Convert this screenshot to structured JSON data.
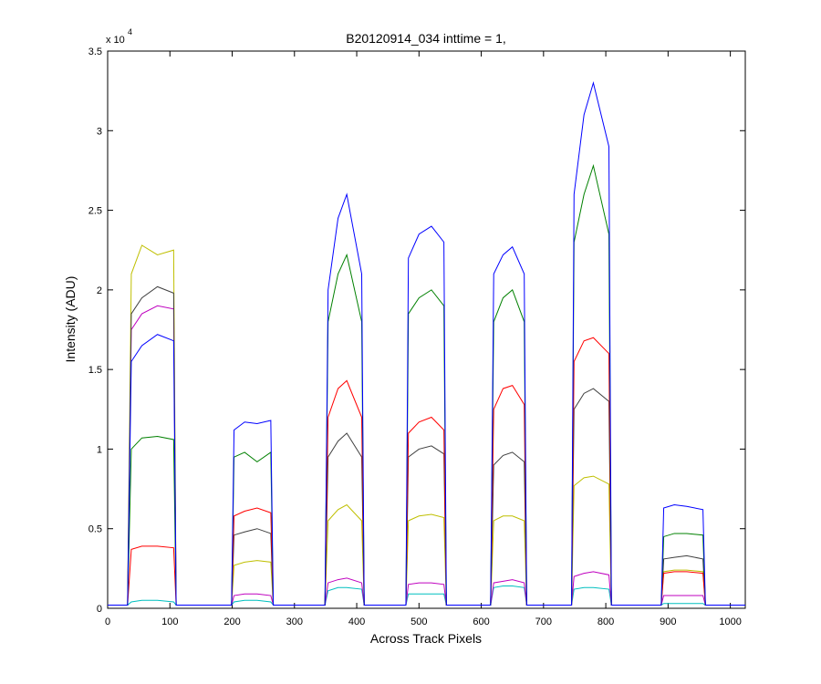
{
  "chart_data": {
    "type": "line",
    "title": "B20120914_034 inttime = 1,",
    "x_label": "Across Track Pixels",
    "y_label": "Intensity (ADU)",
    "y_multiplier": "x 10",
    "y_multiplier_exponent": "4",
    "xlim": [
      0,
      1024
    ],
    "ylim": [
      0,
      3.5
    ],
    "xticks": [
      0,
      100,
      200,
      300,
      400,
      500,
      600,
      700,
      800,
      900,
      1000
    ],
    "yticks": [
      0,
      0.5,
      1,
      1.5,
      2,
      2.5,
      3,
      3.5
    ],
    "grid": false,
    "x": [
      0,
      32,
      38,
      55,
      80,
      106,
      110,
      199,
      203,
      220,
      240,
      262,
      266,
      349,
      354,
      370,
      384,
      408,
      412,
      479,
      483,
      500,
      520,
      540,
      544,
      615,
      620,
      635,
      650,
      669,
      673,
      745,
      749,
      765,
      780,
      805,
      809,
      889,
      893,
      910,
      930,
      956,
      960,
      1024
    ],
    "series": [
      {
        "color": "#00bfbf",
        "values": [
          0.02,
          0.02,
          0.04,
          0.05,
          0.05,
          0.04,
          0.02,
          0.02,
          0.04,
          0.05,
          0.05,
          0.04,
          0.02,
          0.02,
          0.11,
          0.13,
          0.13,
          0.12,
          0.02,
          0.02,
          0.09,
          0.09,
          0.09,
          0.09,
          0.02,
          0.02,
          0.13,
          0.14,
          0.14,
          0.13,
          0.02,
          0.02,
          0.12,
          0.13,
          0.13,
          0.12,
          0.02,
          0.02,
          0.03,
          0.03,
          0.03,
          0.03,
          0.02,
          0.02
        ]
      },
      {
        "color": "#bf00bf",
        "values": [
          0.02,
          0.02,
          1.75,
          1.85,
          1.9,
          1.88,
          0.02,
          0.02,
          0.08,
          0.09,
          0.09,
          0.08,
          0.02,
          0.02,
          0.16,
          0.18,
          0.19,
          0.16,
          0.02,
          0.02,
          0.15,
          0.16,
          0.16,
          0.15,
          0.02,
          0.02,
          0.16,
          0.17,
          0.18,
          0.16,
          0.02,
          0.02,
          0.2,
          0.22,
          0.23,
          0.21,
          0.02,
          0.02,
          0.08,
          0.08,
          0.08,
          0.08,
          0.02,
          0.02
        ]
      },
      {
        "color": "#bfbf00",
        "values": [
          0.02,
          0.02,
          2.1,
          2.28,
          2.22,
          2.25,
          0.02,
          0.02,
          0.27,
          0.29,
          0.3,
          0.29,
          0.02,
          0.02,
          0.55,
          0.62,
          0.65,
          0.55,
          0.02,
          0.02,
          0.55,
          0.58,
          0.59,
          0.57,
          0.02,
          0.02,
          0.55,
          0.58,
          0.58,
          0.55,
          0.02,
          0.02,
          0.77,
          0.82,
          0.83,
          0.78,
          0.02,
          0.02,
          0.23,
          0.24,
          0.24,
          0.23,
          0.02,
          0.02
        ]
      },
      {
        "color": "#3f3f3f",
        "values": [
          0.02,
          0.02,
          1.85,
          1.95,
          2.02,
          1.98,
          0.02,
          0.02,
          0.46,
          0.48,
          0.5,
          0.47,
          0.02,
          0.02,
          0.95,
          1.05,
          1.1,
          0.95,
          0.02,
          0.02,
          0.95,
          1.0,
          1.02,
          0.97,
          0.02,
          0.02,
          0.9,
          0.96,
          0.98,
          0.92,
          0.02,
          0.02,
          1.25,
          1.35,
          1.38,
          1.3,
          0.02,
          0.02,
          0.31,
          0.32,
          0.33,
          0.31,
          0.02,
          0.02
        ]
      },
      {
        "color": "#ff0000",
        "values": [
          0.02,
          0.02,
          0.37,
          0.39,
          0.39,
          0.38,
          0.02,
          0.02,
          0.58,
          0.61,
          0.63,
          0.6,
          0.02,
          0.02,
          1.2,
          1.38,
          1.43,
          1.2,
          0.02,
          0.02,
          1.1,
          1.17,
          1.2,
          1.12,
          0.02,
          0.02,
          1.25,
          1.38,
          1.4,
          1.28,
          0.02,
          0.02,
          1.55,
          1.68,
          1.7,
          1.6,
          0.02,
          0.02,
          0.22,
          0.23,
          0.23,
          0.22,
          0.02,
          0.02
        ]
      },
      {
        "color": "#008000",
        "values": [
          0.02,
          0.02,
          1.0,
          1.07,
          1.08,
          1.06,
          0.02,
          0.02,
          0.95,
          0.98,
          0.92,
          0.98,
          0.02,
          0.02,
          1.8,
          2.1,
          2.22,
          1.8,
          0.02,
          0.02,
          1.85,
          1.95,
          2.0,
          1.9,
          0.02,
          0.02,
          1.8,
          1.95,
          2.0,
          1.8,
          0.02,
          0.02,
          2.3,
          2.6,
          2.78,
          2.35,
          0.02,
          0.02,
          0.45,
          0.47,
          0.47,
          0.46,
          0.02,
          0.02
        ]
      },
      {
        "color": "#0000ff",
        "values": [
          0.02,
          0.02,
          1.55,
          1.65,
          1.72,
          1.68,
          0.02,
          0.02,
          1.12,
          1.17,
          1.16,
          1.18,
          0.02,
          0.02,
          2.0,
          2.45,
          2.6,
          2.1,
          0.02,
          0.02,
          2.2,
          2.35,
          2.4,
          2.3,
          0.02,
          0.02,
          2.1,
          2.22,
          2.27,
          2.1,
          0.02,
          0.02,
          2.6,
          3.1,
          3.3,
          2.9,
          0.02,
          0.02,
          0.63,
          0.65,
          0.64,
          0.62,
          0.02,
          0.02
        ]
      }
    ]
  }
}
